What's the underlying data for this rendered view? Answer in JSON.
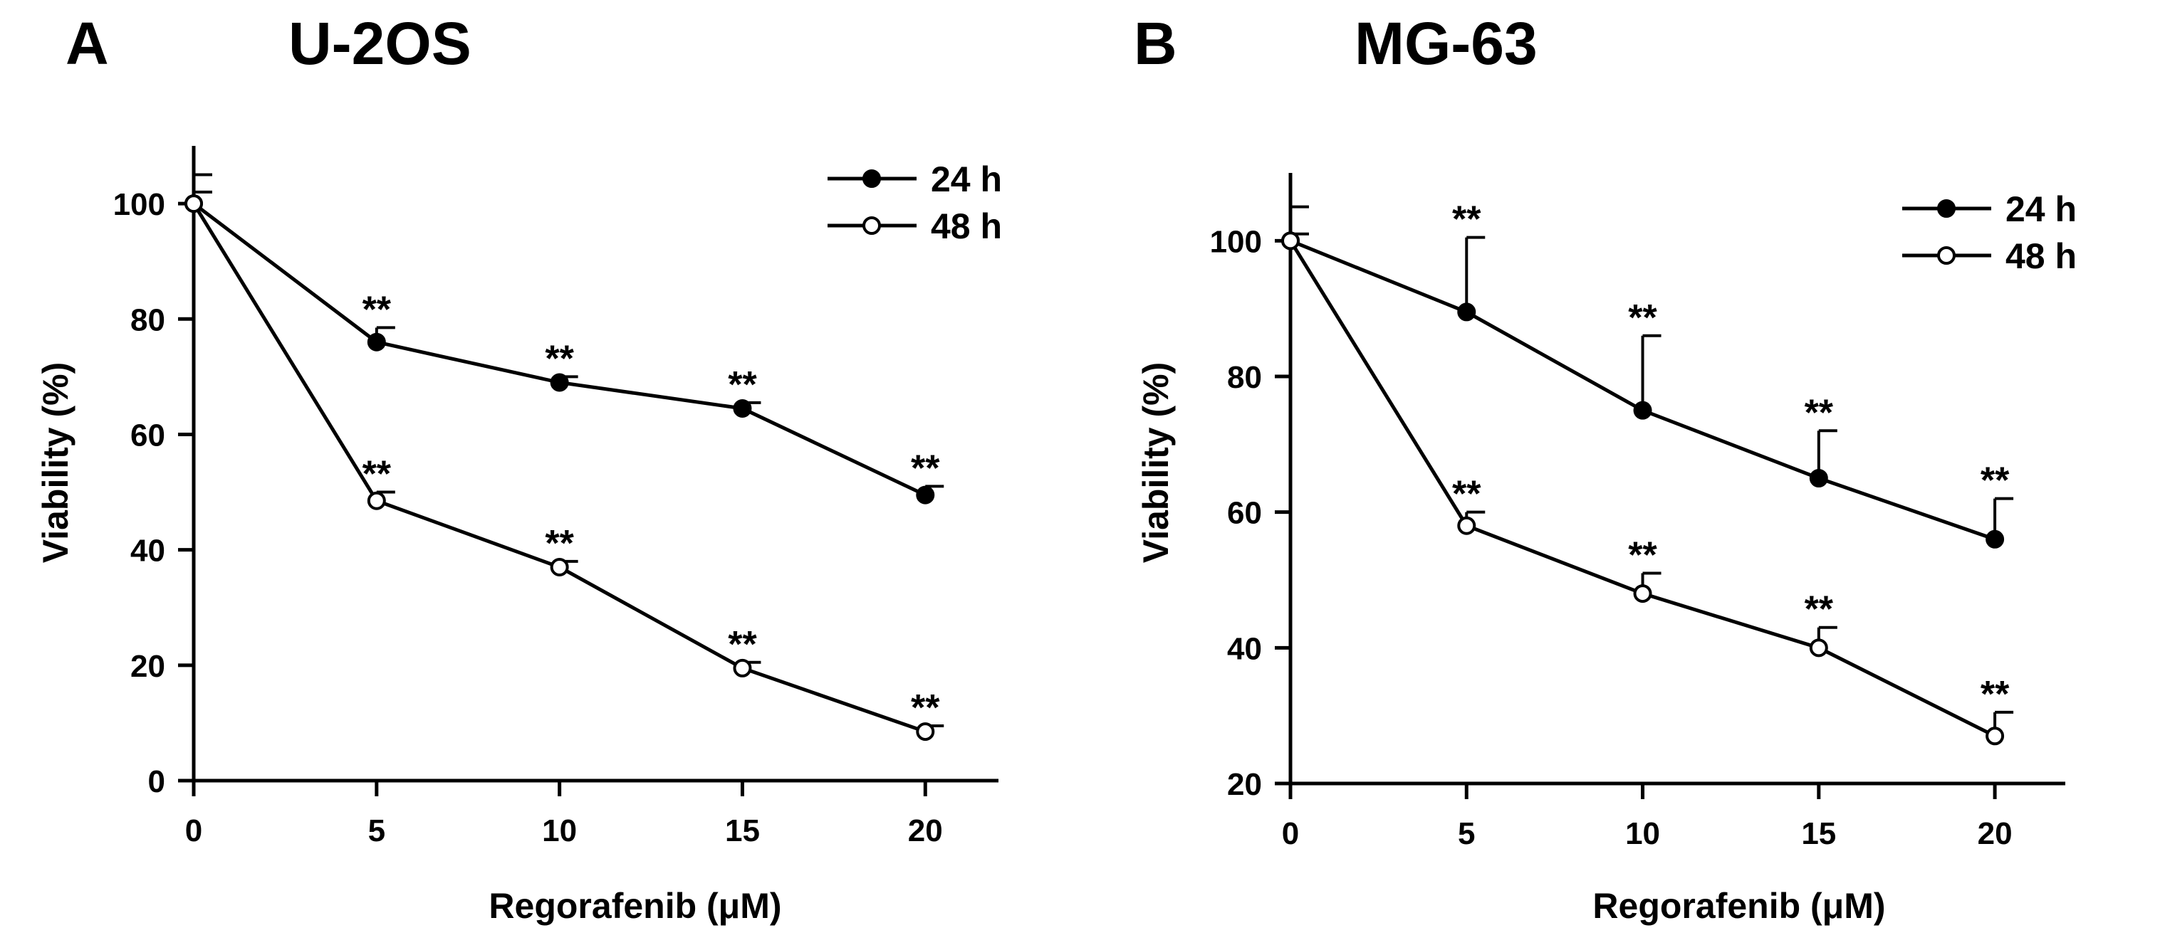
{
  "chart_data": [
    {
      "type": "line",
      "panel_letter": "A",
      "title": "U-2OS",
      "xlabel": "Regorafenib (μM)",
      "ylabel": "Viability (%)",
      "x": [
        0,
        5,
        10,
        15,
        20
      ],
      "xticks": [
        "0",
        "5",
        "10",
        "15",
        "20"
      ],
      "ylim": [
        0,
        110
      ],
      "yticks": [
        "0",
        "20",
        "40",
        "60",
        "80",
        "100"
      ],
      "ytick_values": [
        0,
        20,
        40,
        60,
        80,
        100
      ],
      "legend_position": "top-right",
      "series": [
        {
          "name": "24 h",
          "marker": "filled-circle",
          "values": [
            100,
            76,
            69,
            64.5,
            49.5
          ],
          "errors": [
            5,
            2.5,
            1,
            1,
            1.5
          ],
          "annotations": [
            "",
            "**",
            "**",
            "**",
            "**"
          ]
        },
        {
          "name": "48 h",
          "marker": "open-circle",
          "values": [
            100,
            48.5,
            37,
            19.5,
            8.5
          ],
          "errors": [
            2,
            1.5,
            1,
            1,
            1
          ],
          "annotations": [
            "",
            "**",
            "**",
            "**",
            "**"
          ]
        }
      ]
    },
    {
      "type": "line",
      "panel_letter": "B",
      "title": "MG-63",
      "xlabel": "Regorafenib (μM)",
      "ylabel": "Viability (%)",
      "x": [
        0,
        5,
        10,
        15,
        20
      ],
      "xticks": [
        "0",
        "5",
        "10",
        "15",
        "20"
      ],
      "ylim": [
        20,
        110
      ],
      "yticks": [
        "20",
        "40",
        "60",
        "80",
        "100"
      ],
      "ytick_values": [
        20,
        40,
        60,
        80,
        100
      ],
      "legend_position": "top-right",
      "series": [
        {
          "name": "24 h",
          "marker": "filled-circle",
          "values": [
            100,
            89.5,
            75,
            65,
            56
          ],
          "errors": [
            5,
            11,
            11,
            7,
            6
          ],
          "annotations": [
            "",
            "**",
            "**",
            "**",
            "**"
          ]
        },
        {
          "name": "48 h",
          "marker": "open-circle",
          "values": [
            100,
            58,
            48,
            40,
            27
          ],
          "errors": [
            1,
            2,
            3,
            3,
            3.5
          ],
          "annotations": [
            "",
            "**",
            "**",
            "**",
            "**"
          ]
        }
      ]
    }
  ]
}
